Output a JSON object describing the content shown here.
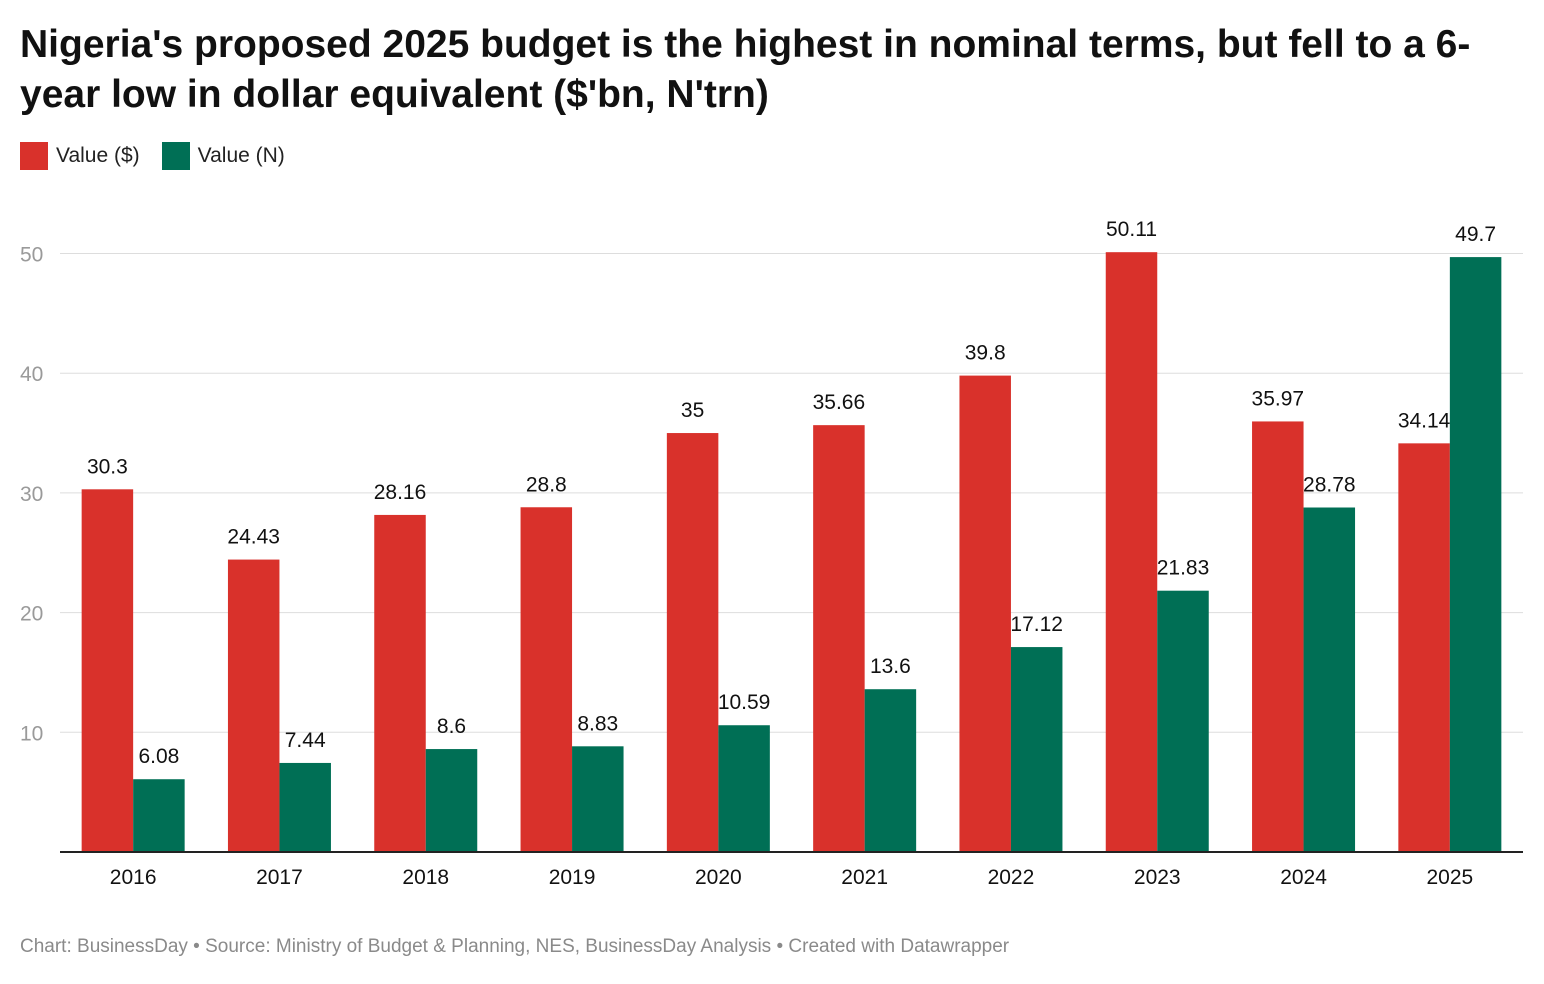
{
  "title": "Nigeria's proposed 2025 budget is the highest in nominal terms, but fell to a 6-year low in dollar equivalent ($'bn, N'trn)",
  "footer": {
    "chart_label": "Chart: BusinessDay",
    "sep": " • ",
    "source_label": "Source: Ministry of Budget & Planning, NES, BusinessDay Analysis",
    "created": "Created with Datawrapper"
  },
  "colors": {
    "usd": "#d9312b",
    "ngn": "#006f55",
    "grid": "#dddddd",
    "axis": "#222222",
    "tick": "#9a9a9a"
  },
  "chart_data": {
    "type": "bar",
    "title": "Nigeria's proposed 2025 budget is the highest in nominal terms, but fell to a 6-year low in dollar equivalent ($'bn, N'trn)",
    "categories": [
      "2016",
      "2017",
      "2018",
      "2019",
      "2020",
      "2021",
      "2022",
      "2023",
      "2024",
      "2025"
    ],
    "series": [
      {
        "name": "Value ($)",
        "values": [
          30.3,
          24.43,
          28.16,
          28.8,
          35,
          35.66,
          39.8,
          50.11,
          35.97,
          34.14
        ]
      },
      {
        "name": "Value (N)",
        "values": [
          6.08,
          7.44,
          8.6,
          8.83,
          10.59,
          13.6,
          17.12,
          21.83,
          28.78,
          49.7
        ]
      }
    ],
    "yticks": [
      10,
      20,
      30,
      40,
      50
    ],
    "ylim": [
      0,
      50
    ],
    "grid": true,
    "legend": "top-left",
    "xlabel": "",
    "ylabel": ""
  }
}
